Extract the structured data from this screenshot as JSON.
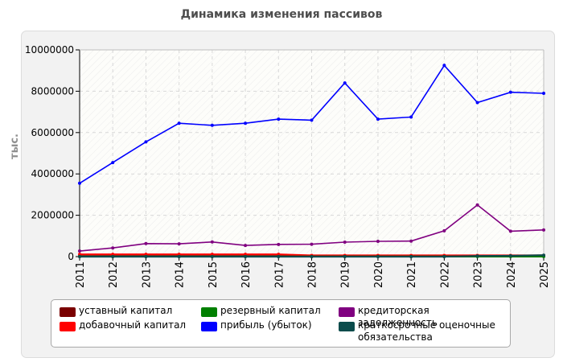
{
  "chart_data": {
    "type": "line",
    "title": "Динамика изменения пассивов",
    "ylabel": "тыс.",
    "xlabel": "",
    "ylim": [
      0,
      10000000
    ],
    "yticks": [
      0,
      2000000,
      4000000,
      6000000,
      8000000,
      10000000
    ],
    "grid": true,
    "legend_position": "bottom",
    "x": [
      "2011",
      "2012",
      "2013",
      "2014",
      "2015",
      "2016",
      "2017",
      "2018",
      "2019",
      "2020",
      "2021",
      "2022",
      "2023",
      "2024",
      "2025"
    ],
    "series": [
      {
        "name": "уставный капитал",
        "color": "#7a0000",
        "values": [
          30000,
          30000,
          30000,
          30000,
          30000,
          30000,
          30000,
          30000,
          30000,
          30000,
          30000,
          30000,
          30000,
          30000,
          30000
        ]
      },
      {
        "name": "добавочный капитал",
        "color": "#ff0000",
        "values": [
          110000,
          110000,
          110000,
          110000,
          110000,
          110000,
          110000,
          60000,
          60000,
          60000,
          60000,
          60000,
          60000,
          60000,
          60000
        ]
      },
      {
        "name": "резервный капитал",
        "color": "#008000",
        "values": [
          5000,
          5000,
          5000,
          5000,
          5000,
          5000,
          5000,
          5000,
          5000,
          5000,
          5000,
          5000,
          5000,
          5000,
          5000
        ]
      },
      {
        "name": "прибыль (убыток)",
        "color": "#0000ff",
        "values": [
          3550000,
          4550000,
          5550000,
          6450000,
          6350000,
          6450000,
          6650000,
          6600000,
          8400000,
          6650000,
          6750000,
          9250000,
          7450000,
          7950000,
          7900000
        ]
      },
      {
        "name": "кредиторская задолженность",
        "color": "#800080",
        "values": [
          270000,
          420000,
          630000,
          620000,
          710000,
          540000,
          590000,
          600000,
          700000,
          740000,
          750000,
          1250000,
          2500000,
          1230000,
          1290000
        ]
      },
      {
        "name": "краткосрочные оценочные обязательства",
        "color": "#0b4c4c",
        "values": [
          0,
          0,
          0,
          0,
          0,
          0,
          0,
          0,
          0,
          0,
          0,
          0,
          30000,
          40000,
          70000
        ]
      }
    ],
    "ytick_labels": [
      "0",
      "2000000",
      "4000000",
      "6000000",
      "8000000",
      "10000000"
    ]
  }
}
